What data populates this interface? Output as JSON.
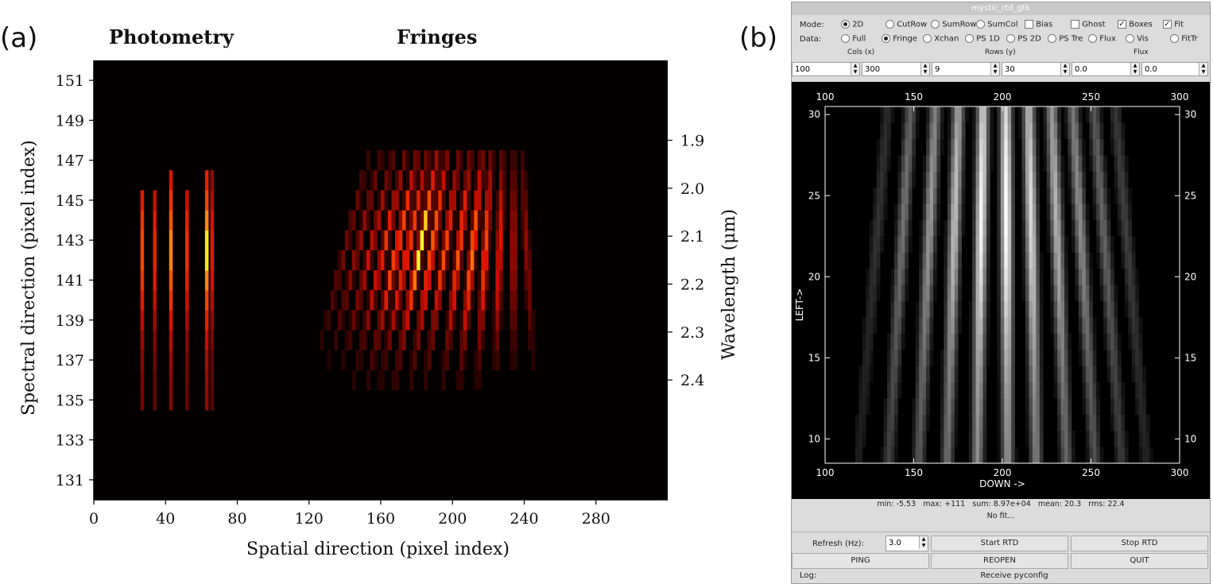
{
  "panel_a": {
    "label": "(a)",
    "photometry_label": "Photometry",
    "fringes_label": "Fringes",
    "xlabel": "Spatial direction (pixel index)",
    "ylabel": "Spectral direction (pixel index)",
    "y2label": "Wavelength (μm)",
    "colors": {
      "dim": "#3a0000",
      "mid": "#b01000",
      "bright": "#ff3a00",
      "peak": "#ffd000",
      "bg": "#050000"
    }
  },
  "panel_b": {
    "label": "(b)",
    "window_title": "mystic_rtd_gtk",
    "mode_label": "Mode:",
    "mode_options": [
      "2D",
      "CutRow",
      "SumRow",
      "SumCol",
      "Bias",
      "Ghost",
      "Boxes",
      "Fit"
    ],
    "data_label": "Data:",
    "data_options": [
      "Full",
      "Fringe",
      "Xchan",
      "PS 1D",
      "PS 2D",
      "PS Tre",
      "Flux",
      "Vis",
      "FitTr"
    ],
    "cols_label": "Cols (x)",
    "rows_label": "Rows (y)",
    "flux_label": "Flux",
    "spin_values": [
      "100",
      "300",
      "9",
      "30",
      "0.0",
      "0.0"
    ],
    "xlabel": "DOWN ->",
    "ylabel": "LEFT->",
    "stats": {
      "min_label": "min:",
      "min": "-5.53",
      "max_label": "max:",
      "max": "+111",
      "sum_label": "sum:",
      "sum": "8.97e+04",
      "mean_label": "mean:",
      "mean": "20.3",
      "rms_label": "rms:",
      "rms": "22.4"
    },
    "fit_status": "No fit...",
    "refresh_label": "Refresh (Hz):",
    "refresh_value": "3.0",
    "start_button": "Start RTD",
    "stop_button": "Stop RTD",
    "ping_button": "PING",
    "reopen_button": "REOPEN",
    "quit_button": "QUIT",
    "log_label": "Log:",
    "log_message": "Receive pyconfig"
  },
  "chart_data": [
    {
      "type": "heatmap",
      "title": "",
      "xlabel": "Spatial direction (pixel index)",
      "ylabel": "Spectral direction (pixel index)",
      "y2label": "Wavelength (μm)",
      "xlim": [
        0,
        320
      ],
      "ylim": [
        130,
        152
      ],
      "xticks": [
        0,
        40,
        80,
        120,
        160,
        200,
        240,
        280
      ],
      "yticks": [
        131,
        133,
        135,
        137,
        139,
        141,
        143,
        145,
        147,
        149,
        151
      ],
      "y2_ticks": [
        {
          "label": "1.9",
          "pixel": 148
        },
        {
          "label": "2.0",
          "pixel": 145.6
        },
        {
          "label": "2.1",
          "pixel": 143.2
        },
        {
          "label": "2.2",
          "pixel": 140.8
        },
        {
          "label": "2.3",
          "pixel": 138.4
        },
        {
          "label": "2.4",
          "pixel": 136
        }
      ],
      "photometry_columns": [
        {
          "x": 27,
          "rows": [
            134.5,
            145.5
          ],
          "peak": 0.75
        },
        {
          "x": 34,
          "rows": [
            134.5,
            145.5
          ],
          "peak": 0.6
        },
        {
          "x": 43,
          "rows": [
            134.5,
            146.5
          ],
          "peak": 0.9
        },
        {
          "x": 52,
          "rows": [
            134.5,
            145.5
          ],
          "peak": 0.65
        },
        {
          "x": 63,
          "rows": [
            134.5,
            146.5
          ],
          "peak": 1.0
        },
        {
          "x": 66,
          "rows": [
            134.5,
            146.5
          ],
          "peak": 0.55
        }
      ],
      "fringe_region": {
        "x": [
          85,
          300
        ],
        "rows": [
          134.5,
          147.5
        ]
      },
      "fringe_centers_at_145": [
        146,
        153,
        160,
        167,
        174,
        180,
        186,
        192,
        199,
        206,
        213,
        219,
        226,
        233,
        239
      ],
      "fringe_centers_at_136": [
        121,
        128,
        136,
        144,
        152,
        159,
        167,
        176,
        184,
        194,
        203,
        213,
        223,
        233,
        244
      ],
      "fringe_intensity": [
        0.35,
        0.45,
        0.55,
        0.7,
        0.85,
        0.75,
        1.0,
        0.8,
        0.7,
        0.75,
        0.9,
        0.8,
        0.7,
        0.55,
        0.45
      ],
      "legend": "none"
    },
    {
      "type": "heatmap",
      "xlabel": "DOWN ->",
      "ylabel": "LEFT->",
      "xlim": [
        100,
        300
      ],
      "ylim": [
        8.5,
        30.5
      ],
      "xticks": [
        100,
        150,
        200,
        250,
        300
      ],
      "yticks": [
        10,
        15,
        20,
        25,
        30
      ],
      "fringe_centers_at_30": [
        134,
        147,
        161,
        174,
        188,
        201,
        214,
        227,
        239,
        251,
        263
      ],
      "fringe_centers_at_9": [
        118,
        135,
        152,
        168,
        185,
        202,
        218,
        235,
        251,
        266,
        280
      ],
      "fringe_intensity": [
        0.2,
        0.45,
        0.6,
        0.75,
        0.95,
        1.0,
        0.85,
        0.7,
        0.55,
        0.4,
        0.25
      ],
      "colormap": "gray",
      "legend": "none"
    }
  ]
}
